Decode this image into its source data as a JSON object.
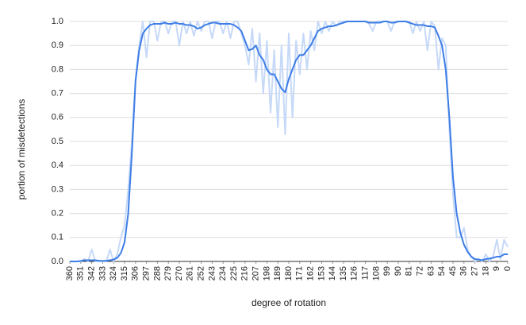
{
  "chart_data": {
    "type": "line",
    "y_label": "portion of misdetections",
    "x_label": "degree of rotation",
    "xlim": [
      360,
      0
    ],
    "xticks": [
      360,
      351,
      342,
      333,
      324,
      315,
      306,
      297,
      288,
      279,
      270,
      261,
      252,
      243,
      234,
      225,
      216,
      207,
      198,
      189,
      180,
      171,
      162,
      153,
      144,
      135,
      126,
      117,
      108,
      99,
      90,
      81,
      72,
      63,
      54,
      45,
      36,
      27,
      18,
      9,
      0
    ],
    "ylim": [
      0,
      1
    ],
    "yticks": [
      {
        "value": 0,
        "label": "0.0"
      },
      {
        "value": 0.1,
        "label": "0.1"
      },
      {
        "value": 0.2,
        "label": "0.2"
      },
      {
        "value": 0.3,
        "label": "0.3"
      },
      {
        "value": 0.4,
        "label": "0.4"
      },
      {
        "value": 0.5,
        "label": "0.5"
      },
      {
        "value": 0.6,
        "label": "0.6"
      },
      {
        "value": 0.7,
        "label": "0.7"
      },
      {
        "value": 0.8,
        "label": "0.8"
      },
      {
        "value": 0.9,
        "label": "0.9"
      },
      {
        "value": 1,
        "label": "1.0"
      }
    ],
    "grid": true,
    "x": [
      360,
      357,
      354,
      351,
      348,
      345,
      342,
      339,
      336,
      333,
      330,
      327,
      324,
      321,
      318,
      315,
      312,
      309,
      306,
      303,
      300,
      297,
      294,
      291,
      288,
      285,
      282,
      279,
      276,
      273,
      270,
      267,
      264,
      261,
      258,
      255,
      252,
      249,
      246,
      243,
      240,
      237,
      234,
      231,
      228,
      225,
      222,
      219,
      216,
      213,
      210,
      207,
      204,
      201,
      198,
      195,
      192,
      189,
      186,
      183,
      180,
      177,
      174,
      171,
      168,
      165,
      162,
      159,
      156,
      153,
      150,
      147,
      144,
      141,
      138,
      135,
      132,
      129,
      126,
      123,
      120,
      117,
      114,
      111,
      108,
      105,
      102,
      99,
      96,
      93,
      90,
      87,
      84,
      81,
      78,
      75,
      72,
      69,
      66,
      63,
      60,
      57,
      54,
      51,
      48,
      45,
      42,
      39,
      36,
      33,
      30,
      27,
      24,
      21,
      18,
      15,
      12,
      9,
      6,
      3,
      0
    ],
    "series": [
      {
        "color": "#c6d9f8",
        "width": 2,
        "values": [
          0,
          0,
          0,
          0,
          0.01,
          0,
          0.05,
          0,
          0,
          0,
          0,
          0.05,
          0,
          0.03,
          0.1,
          0.15,
          0.3,
          0.5,
          0.76,
          0.9,
          1,
          0.85,
          1,
          1,
          0.92,
          1,
          1,
          0.95,
          1,
          1,
          0.9,
          1,
          0.95,
          1,
          0.94,
          1,
          0.96,
          1,
          1,
          0.93,
          1,
          1,
          0.95,
          1,
          0.93,
          1,
          1,
          0.95,
          0.9,
          0.82,
          0.97,
          0.75,
          0.95,
          0.7,
          0.92,
          0.62,
          0.88,
          0.56,
          0.9,
          0.53,
          0.95,
          0.6,
          0.92,
          0.78,
          0.95,
          0.8,
          0.96,
          0.88,
          1,
          0.95,
          1,
          0.96,
          1,
          0.98,
          1,
          1,
          1,
          1,
          1,
          1,
          1,
          1,
          0.99,
          0.96,
          1,
          1,
          1,
          1,
          0.96,
          1,
          1,
          1,
          1,
          1,
          0.95,
          1,
          0.96,
          1,
          0.88,
          1,
          0.98,
          0.8,
          0.93,
          0.9,
          0.55,
          0.28,
          0.1,
          0.1,
          0.14,
          0.05,
          0.02,
          0,
          0.01,
          0,
          0.03,
          0,
          0.02,
          0.09,
          0.01,
          0.09,
          0.06
        ]
      },
      {
        "color": "#3d7de6",
        "width": 2,
        "values": [
          0,
          0,
          0,
          0.002,
          0.005,
          0.005,
          0.005,
          0.005,
          0.003,
          0.002,
          0.003,
          0.005,
          0.008,
          0.015,
          0.035,
          0.08,
          0.2,
          0.45,
          0.75,
          0.88,
          0.95,
          0.97,
          0.985,
          0.99,
          0.99,
          0.99,
          0.995,
          0.99,
          0.99,
          0.995,
          0.99,
          0.99,
          0.985,
          0.985,
          0.98,
          0.97,
          0.975,
          0.985,
          0.99,
          0.995,
          0.995,
          0.99,
          0.99,
          0.99,
          0.99,
          0.985,
          0.975,
          0.96,
          0.92,
          0.88,
          0.885,
          0.9,
          0.86,
          0.84,
          0.8,
          0.78,
          0.78,
          0.75,
          0.72,
          0.705,
          0.76,
          0.8,
          0.84,
          0.86,
          0.86,
          0.88,
          0.9,
          0.93,
          0.96,
          0.97,
          0.975,
          0.98,
          0.98,
          0.985,
          0.99,
          0.995,
          1,
          1,
          1,
          1,
          1,
          1,
          0.995,
          0.995,
          0.995,
          0.995,
          1,
          1,
          0.995,
          0.995,
          1,
          1,
          1,
          0.995,
          0.99,
          0.985,
          0.985,
          0.985,
          0.98,
          0.98,
          0.975,
          0.94,
          0.9,
          0.8,
          0.6,
          0.35,
          0.2,
          0.12,
          0.07,
          0.04,
          0.02,
          0.01,
          0.008,
          0.005,
          0.01,
          0.012,
          0.015,
          0.02,
          0.02,
          0.03,
          0.03
        ]
      }
    ]
  }
}
